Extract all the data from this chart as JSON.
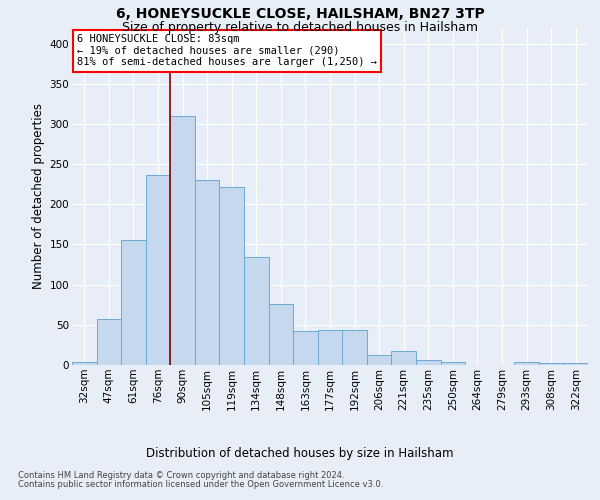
{
  "title": "6, HONEYSUCKLE CLOSE, HAILSHAM, BN27 3TP",
  "subtitle": "Size of property relative to detached houses in Hailsham",
  "xlabel": "Distribution of detached houses by size in Hailsham",
  "ylabel": "Number of detached properties",
  "bar_color": "#c5d8ee",
  "bar_edge_color": "#6aaad4",
  "categories": [
    "32sqm",
    "47sqm",
    "61sqm",
    "76sqm",
    "90sqm",
    "105sqm",
    "119sqm",
    "134sqm",
    "148sqm",
    "163sqm",
    "177sqm",
    "192sqm",
    "206sqm",
    "221sqm",
    "235sqm",
    "250sqm",
    "264sqm",
    "279sqm",
    "293sqm",
    "308sqm",
    "322sqm"
  ],
  "values": [
    4,
    57,
    155,
    237,
    310,
    230,
    222,
    135,
    76,
    42,
    43,
    43,
    12,
    17,
    6,
    4,
    0,
    0,
    4,
    3,
    2
  ],
  "ylim": [
    0,
    420
  ],
  "yticks": [
    0,
    50,
    100,
    150,
    200,
    250,
    300,
    350,
    400
  ],
  "property_line_x": 3.5,
  "annotation_line1": "6 HONEYSUCKLE CLOSE: 83sqm",
  "annotation_line2": "← 19% of detached houses are smaller (290)",
  "annotation_line3": "81% of semi-detached houses are larger (1,250) →",
  "footnote1": "Contains HM Land Registry data © Crown copyright and database right 2024.",
  "footnote2": "Contains public sector information licensed under the Open Government Licence v3.0.",
  "background_color": "#e8eef8",
  "grid_color": "#ffffff",
  "title_fontsize": 10,
  "subtitle_fontsize": 9,
  "ylabel_fontsize": 8.5,
  "xlabel_fontsize": 8.5,
  "tick_fontsize": 7.5,
  "annot_fontsize": 7.5,
  "footnote_fontsize": 6.0
}
